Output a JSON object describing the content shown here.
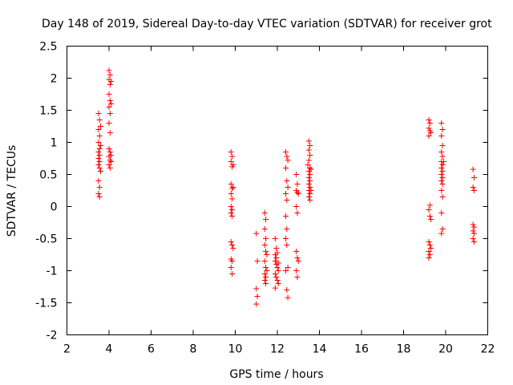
{
  "chart_data": {
    "type": "scatter",
    "title": "Day 148 of 2019, Sidereal Day-to-day VTEC variation (SDTVAR) for receiver grot",
    "xlabel": "GPS time / hours",
    "ylabel": "SDTVAR / TECUs",
    "xlim": [
      2,
      22
    ],
    "ylim": [
      -2,
      2.5
    ],
    "xticks": [
      2,
      4,
      6,
      8,
      10,
      12,
      14,
      16,
      18,
      20,
      22
    ],
    "yticks": [
      -2,
      -1.5,
      -1,
      -0.5,
      0,
      0.5,
      1,
      1.5,
      2,
      2.5
    ],
    "xtick_labels": [
      "2",
      "4",
      "6",
      "8",
      "10",
      "12",
      "14",
      "16",
      "18",
      "20",
      "22"
    ],
    "ytick_labels": [
      "-2",
      "-1.5",
      "-1",
      "-0.5",
      "0",
      "0.5",
      "1",
      "1.5",
      "2",
      "2.5"
    ],
    "grid": false,
    "marker": "+",
    "color": "#ff0000",
    "series": [
      {
        "name": "SDTVAR",
        "points": [
          [
            3.5,
            1.45
          ],
          [
            3.55,
            1.35
          ],
          [
            3.5,
            1.2
          ],
          [
            3.55,
            1.1
          ],
          [
            3.5,
            1.0
          ],
          [
            3.55,
            0.9
          ],
          [
            3.5,
            0.85
          ],
          [
            3.55,
            0.8
          ],
          [
            3.5,
            0.75
          ],
          [
            3.55,
            0.7
          ],
          [
            3.5,
            0.65
          ],
          [
            3.55,
            0.6
          ],
          [
            3.5,
            0.4
          ],
          [
            3.55,
            0.3
          ],
          [
            3.5,
            0.2
          ],
          [
            3.55,
            0.15
          ],
          [
            3.6,
            1.25
          ],
          [
            3.6,
            0.95
          ],
          [
            3.6,
            0.55
          ],
          [
            4.0,
            2.12
          ],
          [
            4.05,
            2.05
          ],
          [
            4.0,
            1.98
          ],
          [
            4.05,
            1.9
          ],
          [
            4.0,
            1.75
          ],
          [
            4.05,
            1.65
          ],
          [
            4.0,
            1.55
          ],
          [
            4.05,
            1.45
          ],
          [
            4.0,
            1.3
          ],
          [
            4.05,
            1.15
          ],
          [
            4.0,
            0.9
          ],
          [
            4.05,
            0.85
          ],
          [
            4.0,
            0.78
          ],
          [
            4.05,
            0.72
          ],
          [
            4.0,
            0.65
          ],
          [
            4.05,
            0.6
          ],
          [
            4.1,
            0.7
          ],
          [
            4.1,
            0.8
          ],
          [
            4.1,
            1.6
          ],
          [
            4.1,
            1.95
          ],
          [
            9.8,
            0.85
          ],
          [
            9.85,
            0.78
          ],
          [
            9.8,
            0.7
          ],
          [
            9.85,
            0.62
          ],
          [
            9.8,
            0.35
          ],
          [
            9.85,
            0.28
          ],
          [
            9.8,
            0.2
          ],
          [
            9.85,
            0.12
          ],
          [
            9.8,
            0.0
          ],
          [
            9.85,
            -0.05
          ],
          [
            9.8,
            -0.1
          ],
          [
            9.85,
            -0.15
          ],
          [
            9.8,
            -0.55
          ],
          [
            9.85,
            -0.6
          ],
          [
            9.8,
            -0.82
          ],
          [
            9.85,
            -0.85
          ],
          [
            9.8,
            -0.95
          ],
          [
            9.85,
            -1.05
          ],
          [
            9.9,
            0.3
          ],
          [
            9.9,
            0.65
          ],
          [
            9.9,
            -0.65
          ],
          [
            11.0,
            -0.42
          ],
          [
            11.05,
            -0.85
          ],
          [
            11.0,
            -1.28
          ],
          [
            11.05,
            -1.4
          ],
          [
            11.0,
            -1.52
          ],
          [
            11.4,
            -0.1
          ],
          [
            11.45,
            -0.2
          ],
          [
            11.4,
            -0.35
          ],
          [
            11.45,
            -0.5
          ],
          [
            11.4,
            -0.6
          ],
          [
            11.45,
            -0.7
          ],
          [
            11.4,
            -0.85
          ],
          [
            11.45,
            -0.95
          ],
          [
            11.4,
            -1.05
          ],
          [
            11.45,
            -1.1
          ],
          [
            11.4,
            -1.15
          ],
          [
            11.45,
            -1.2
          ],
          [
            11.5,
            -0.75
          ],
          [
            11.5,
            -1.0
          ],
          [
            11.9,
            -0.5
          ],
          [
            11.95,
            -0.65
          ],
          [
            11.9,
            -0.75
          ],
          [
            11.95,
            -0.8
          ],
          [
            11.9,
            -0.85
          ],
          [
            11.95,
            -0.9
          ],
          [
            12.0,
            -0.95
          ],
          [
            12.05,
            -1.0
          ],
          [
            11.9,
            -1.05
          ],
          [
            11.95,
            -1.1
          ],
          [
            12.0,
            -1.15
          ],
          [
            12.05,
            -1.2
          ],
          [
            11.9,
            -1.27
          ],
          [
            12.0,
            -0.72
          ],
          [
            12.05,
            -0.88
          ],
          [
            12.4,
            0.85
          ],
          [
            12.45,
            0.78
          ],
          [
            12.5,
            0.72
          ],
          [
            12.4,
            0.6
          ],
          [
            12.45,
            0.4
          ],
          [
            12.5,
            0.3
          ],
          [
            12.4,
            0.2
          ],
          [
            12.45,
            0.1
          ],
          [
            12.4,
            -0.15
          ],
          [
            12.45,
            -0.35
          ],
          [
            12.4,
            -0.5
          ],
          [
            12.45,
            -0.6
          ],
          [
            12.5,
            -0.95
          ],
          [
            12.4,
            -1.0
          ],
          [
            12.45,
            -1.3
          ],
          [
            12.5,
            -1.42
          ],
          [
            12.9,
            0.5
          ],
          [
            12.95,
            0.35
          ],
          [
            12.9,
            0.25
          ],
          [
            12.95,
            0.22
          ],
          [
            13.0,
            0.2
          ],
          [
            12.9,
            0.0
          ],
          [
            12.95,
            -0.1
          ],
          [
            12.9,
            -0.7
          ],
          [
            12.95,
            -0.8
          ],
          [
            13.0,
            -0.85
          ],
          [
            12.9,
            -1.0
          ],
          [
            12.95,
            -1.1
          ],
          [
            13.5,
            1.02
          ],
          [
            13.55,
            0.95
          ],
          [
            13.5,
            0.88
          ],
          [
            13.55,
            0.8
          ],
          [
            13.5,
            0.72
          ],
          [
            13.55,
            0.6
          ],
          [
            13.5,
            0.55
          ],
          [
            13.55,
            0.5
          ],
          [
            13.5,
            0.45
          ],
          [
            13.55,
            0.4
          ],
          [
            13.5,
            0.35
          ],
          [
            13.55,
            0.3
          ],
          [
            13.5,
            0.25
          ],
          [
            13.55,
            0.2
          ],
          [
            13.5,
            0.15
          ],
          [
            13.55,
            0.1
          ],
          [
            13.6,
            0.58
          ],
          [
            13.6,
            0.25
          ],
          [
            13.45,
            0.65
          ],
          [
            19.2,
            1.35
          ],
          [
            19.25,
            1.3
          ],
          [
            19.2,
            1.22
          ],
          [
            19.25,
            1.18
          ],
          [
            19.3,
            1.15
          ],
          [
            19.2,
            1.1
          ],
          [
            19.25,
            0.02
          ],
          [
            19.2,
            -0.05
          ],
          [
            19.25,
            -0.15
          ],
          [
            19.3,
            -0.2
          ],
          [
            19.2,
            -0.55
          ],
          [
            19.25,
            -0.6
          ],
          [
            19.3,
            -0.65
          ],
          [
            19.2,
            -0.7
          ],
          [
            19.25,
            -0.75
          ],
          [
            19.2,
            -0.8
          ],
          [
            19.8,
            1.3
          ],
          [
            19.85,
            1.2
          ],
          [
            19.8,
            1.1
          ],
          [
            19.85,
            0.95
          ],
          [
            19.8,
            0.85
          ],
          [
            19.85,
            0.78
          ],
          [
            19.8,
            0.7
          ],
          [
            19.85,
            0.65
          ],
          [
            19.8,
            0.6
          ],
          [
            19.85,
            0.55
          ],
          [
            19.8,
            0.5
          ],
          [
            19.85,
            0.45
          ],
          [
            19.8,
            0.4
          ],
          [
            19.85,
            0.35
          ],
          [
            19.8,
            0.25
          ],
          [
            19.85,
            0.15
          ],
          [
            19.8,
            -0.1
          ],
          [
            19.85,
            -0.35
          ],
          [
            19.8,
            -0.42
          ],
          [
            19.9,
            0.7
          ],
          [
            21.3,
            0.58
          ],
          [
            21.35,
            0.45
          ],
          [
            21.3,
            0.3
          ],
          [
            21.35,
            0.25
          ],
          [
            21.3,
            -0.28
          ],
          [
            21.35,
            -0.32
          ],
          [
            21.3,
            -0.38
          ],
          [
            21.35,
            -0.42
          ],
          [
            21.3,
            -0.5
          ],
          [
            21.35,
            -0.55
          ]
        ]
      }
    ]
  }
}
